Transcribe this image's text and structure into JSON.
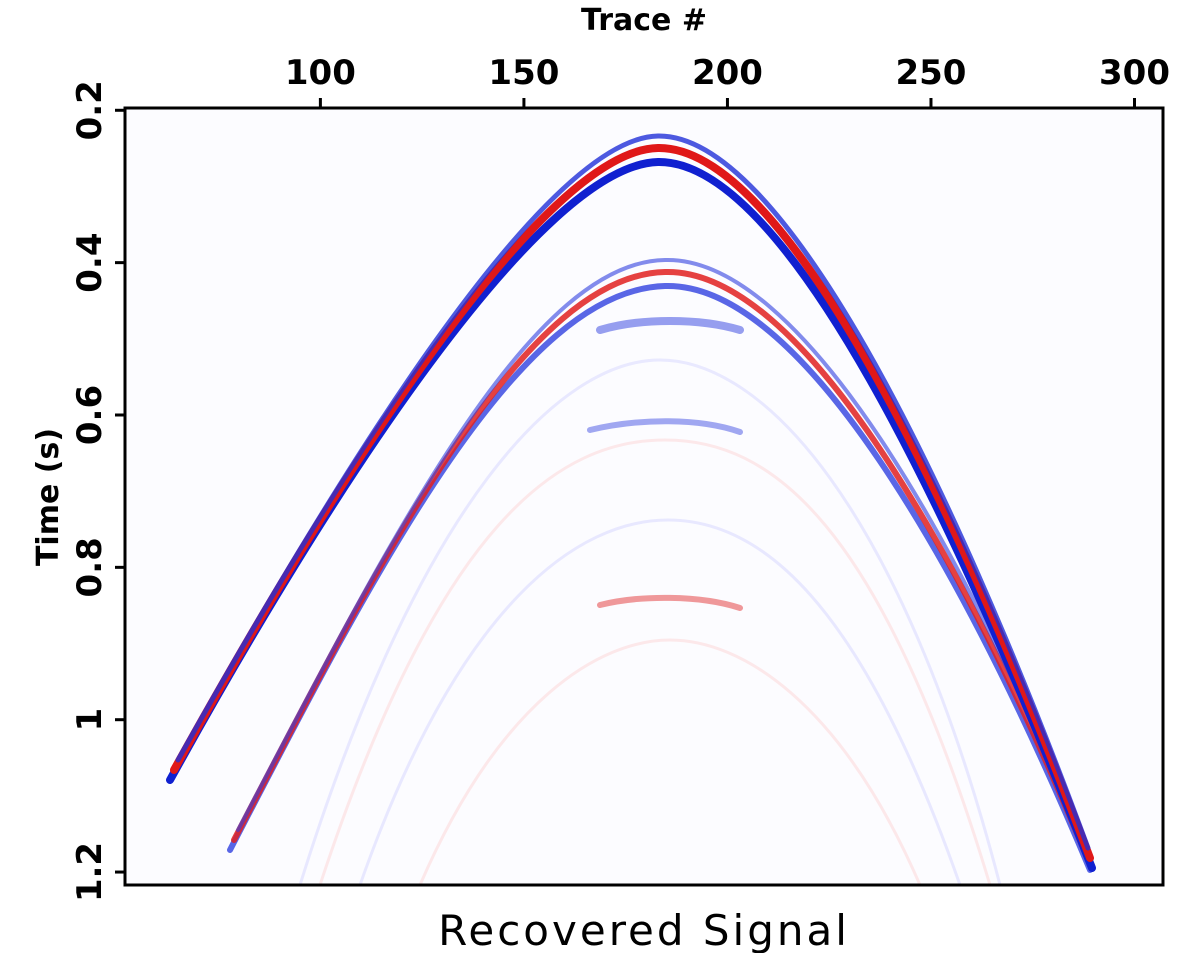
{
  "chart_data": {
    "type": "image",
    "title": "Recovered Signal",
    "x_label": "Trace #",
    "y_label": "Time (s)",
    "xlim": [
      52,
      307
    ],
    "xticks": [
      100,
      150,
      200,
      250,
      300
    ],
    "ylim": [
      0.197,
      1.217
    ],
    "yticks": [
      0.2,
      0.4,
      0.6,
      0.8,
      1,
      1.2
    ]
  }
}
